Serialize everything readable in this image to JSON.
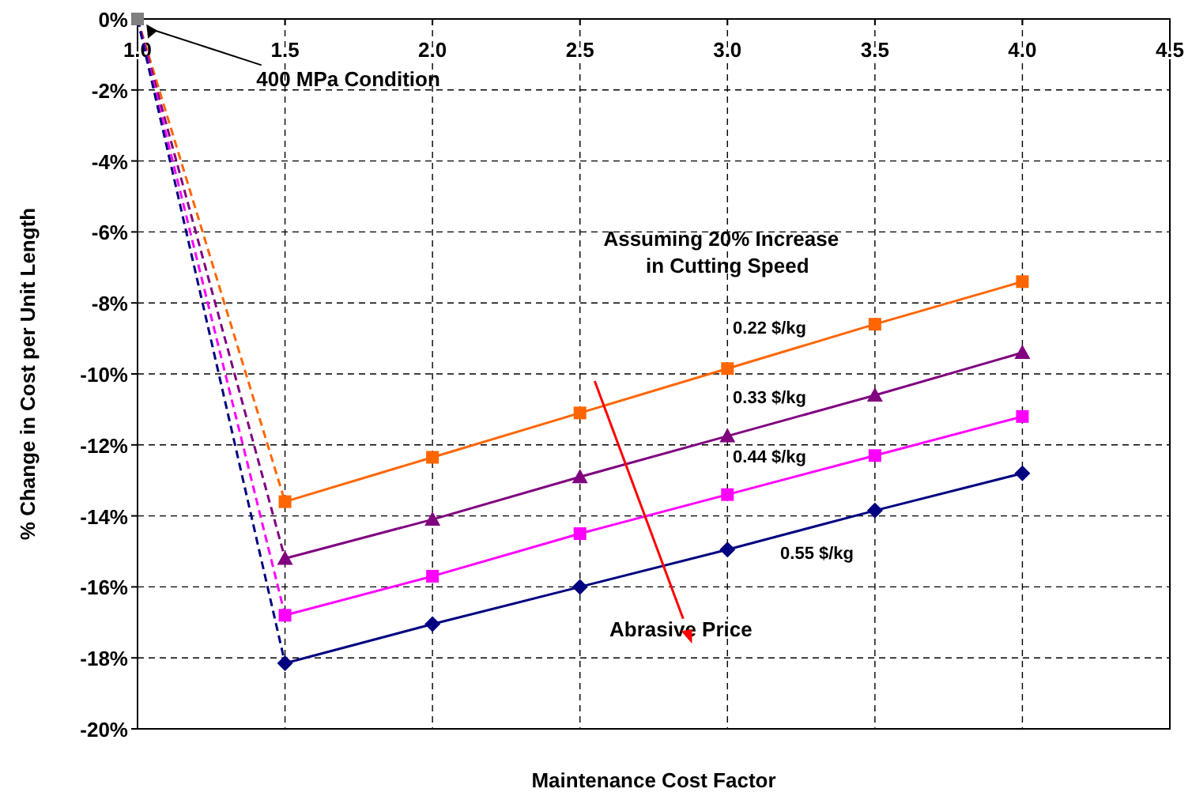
{
  "chart_data": {
    "type": "line",
    "xlabel": "Maintenance Cost Factor",
    "ylabel": "% Change in Cost per Unit Length",
    "xlim": [
      1,
      4.5
    ],
    "xticks": [
      {
        "value": 1,
        "label": "1.0"
      },
      1.5,
      {
        "value": 2,
        "label": "2.0"
      },
      2.5,
      {
        "value": 3,
        "label": "3.0"
      },
      3.5,
      {
        "value": 4,
        "label": "4.0"
      },
      4.5
    ],
    "ylim": [
      -20,
      0
    ],
    "yticks": [
      {
        "value": -20,
        "label": "-20%"
      },
      {
        "value": -18,
        "label": "-18%"
      },
      {
        "value": -16,
        "label": "-16%"
      },
      {
        "value": -14,
        "label": "-14%"
      },
      {
        "value": -12,
        "label": "-12%"
      },
      {
        "value": -10,
        "label": "-10%"
      },
      {
        "value": -8,
        "label": "-8%"
      },
      {
        "value": -6,
        "label": "-6%"
      },
      {
        "value": -4,
        "label": "-4%"
      },
      {
        "value": -2,
        "label": "-2%"
      },
      {
        "value": 0,
        "label": "0%"
      }
    ],
    "grid": true,
    "annotations": [
      "400 MPa Condition",
      "Assuming 20% Increase in Cutting Speed",
      "Abrasive Price"
    ],
    "series": [
      {
        "name": "0.22 $/kg",
        "color": "#ff6600",
        "marker": "square",
        "line_style": "solid",
        "x": [
          1.5,
          2,
          2.5,
          3,
          3.5,
          4
        ],
        "values": [
          -13.6,
          -12.35,
          -11.1,
          -9.85,
          -8.6,
          -7.4
        ]
      },
      {
        "name": "0.33 $/kg",
        "color": "#800080",
        "marker": "triangle",
        "line_style": "solid",
        "x": [
          1.5,
          2,
          2.5,
          3,
          3.5,
          4
        ],
        "values": [
          -15.2,
          -14.1,
          -12.9,
          -11.75,
          -10.6,
          -9.4
        ]
      },
      {
        "name": "0.44 $/kg",
        "color": "#ff00ff",
        "marker": "square",
        "line_style": "solid",
        "x": [
          1.5,
          2,
          2.5,
          3,
          3.5,
          4
        ],
        "values": [
          -16.8,
          -15.7,
          -14.5,
          -13.4,
          -12.3,
          -11.2
        ]
      },
      {
        "name": "0.55 $/kg",
        "color": "#000080",
        "marker": "diamond",
        "line_style": "solid",
        "x": [
          1.5,
          2,
          2.5,
          3,
          3.5,
          4
        ],
        "values": [
          -18.15,
          -17.05,
          -16,
          -14.95,
          -13.85,
          -12.8
        ]
      },
      {
        "color": "#ff6600",
        "marker": "none",
        "line_style": "dashed",
        "x": [
          1,
          1.5
        ],
        "values": [
          0,
          -13.6
        ]
      },
      {
        "color": "#800080",
        "marker": "none",
        "line_style": "dashed",
        "x": [
          1,
          1.5
        ],
        "values": [
          0,
          -15.2
        ]
      },
      {
        "color": "#ff00ff",
        "marker": "none",
        "line_style": "dashed",
        "x": [
          1,
          1.5
        ],
        "values": [
          0,
          -16.8
        ]
      },
      {
        "color": "#000080",
        "marker": "none",
        "line_style": "dashed",
        "x": [
          1,
          1.5
        ],
        "values": [
          0,
          -18.15
        ]
      },
      {
        "color": "#808080",
        "marker": "square",
        "x": [
          1
        ],
        "values": [
          0
        ]
      }
    ]
  }
}
